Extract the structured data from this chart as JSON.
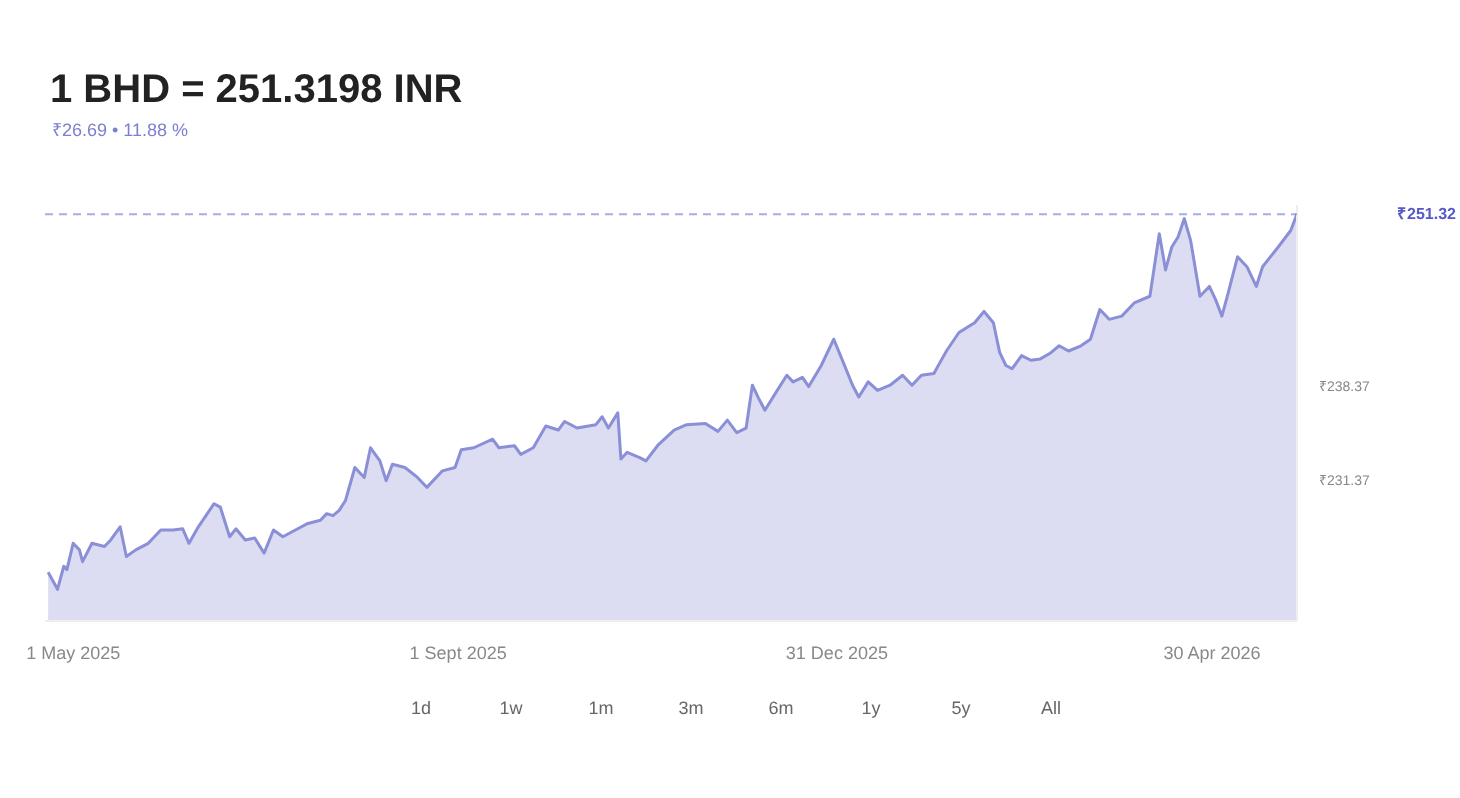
{
  "chart_data": {
    "type": "area",
    "title": "1 BHD = 251.3198 INR",
    "subtitle": "₹26.69 • 11.88 %",
    "x": [
      "2025-04-23",
      "2025-04-26",
      "2025-04-28",
      "2025-04-29",
      "2025-05-01",
      "2025-05-03",
      "2025-05-04",
      "2025-05-07",
      "2025-05-11",
      "2025-05-13",
      "2025-05-16",
      "2025-05-18",
      "2025-05-21",
      "2025-05-25",
      "2025-05-29",
      "2025-06-02",
      "2025-06-05",
      "2025-06-07",
      "2025-06-10",
      "2025-06-15",
      "2025-06-17",
      "2025-06-20",
      "2025-06-22",
      "2025-06-25",
      "2025-06-28",
      "2025-07-01",
      "2025-07-04",
      "2025-07-07",
      "2025-07-11",
      "2025-07-15",
      "2025-07-19",
      "2025-07-21",
      "2025-07-23",
      "2025-07-25",
      "2025-07-27",
      "2025-07-30",
      "2025-08-02",
      "2025-08-04",
      "2025-08-07",
      "2025-08-09",
      "2025-08-11",
      "2025-08-15",
      "2025-08-19",
      "2025-08-22",
      "2025-08-27",
      "2025-08-31",
      "2025-09-02",
      "2025-09-06",
      "2025-09-12",
      "2025-09-14",
      "2025-09-19",
      "2025-09-21",
      "2025-09-25",
      "2025-09-29",
      "2025-10-03",
      "2025-10-05",
      "2025-10-09",
      "2025-10-15",
      "2025-10-17",
      "2025-10-19",
      "2025-10-22",
      "2025-10-23",
      "2025-10-25",
      "2025-10-29",
      "2025-10-31",
      "2025-11-04",
      "2025-11-09",
      "2025-11-13",
      "2025-11-19",
      "2025-11-23",
      "2025-11-26",
      "2025-11-29",
      "2025-12-02",
      "2025-12-04",
      "2025-12-06",
      "2025-12-08",
      "2025-12-11",
      "2025-12-15",
      "2025-12-17",
      "2025-12-20",
      "2025-12-22",
      "2025-12-26",
      "2025-12-30",
      "2026-01-02",
      "2026-01-05",
      "2026-01-07",
      "2026-01-10",
      "2026-01-13",
      "2026-01-17",
      "2026-01-21",
      "2026-01-24",
      "2026-01-27",
      "2026-01-31",
      "2026-02-02",
      "2026-02-04",
      "2026-02-08",
      "2026-02-13",
      "2026-02-16",
      "2026-02-19",
      "2026-02-21",
      "2026-02-23",
      "2026-02-25",
      "2026-02-28",
      "2026-03-03",
      "2026-03-06",
      "2026-03-09",
      "2026-03-12",
      "2026-03-15",
      "2026-03-19",
      "2026-03-22",
      "2026-03-25",
      "2026-03-28",
      "2026-04-01",
      "2026-04-05",
      "2026-04-10",
      "2026-04-13",
      "2026-04-15",
      "2026-04-17",
      "2026-04-19",
      "2026-04-21",
      "2026-04-23",
      "2026-04-26",
      "2026-04-29",
      "2026-05-01",
      "2026-05-03",
      "2026-05-05",
      "2026-05-08",
      "2026-05-11",
      "2026-05-14",
      "2026-05-16",
      "2026-05-21",
      "2026-05-25",
      "2026-05-27"
    ],
    "series": [
      {
        "color": "#8a8fd6",
        "values": [
          224.63,
          223.36,
          225.08,
          224.83,
          226.79,
          226.3,
          225.42,
          226.79,
          226.55,
          227.04,
          228.02,
          225.81,
          226.3,
          226.79,
          227.78,
          227.78,
          227.87,
          226.79,
          228.02,
          229.74,
          229.49,
          227.28,
          227.87,
          227.04,
          227.19,
          226.06,
          227.78,
          227.28,
          227.78,
          228.27,
          228.51,
          229.0,
          228.85,
          229.24,
          229.98,
          232.44,
          231.7,
          233.91,
          232.93,
          231.45,
          232.68,
          232.44,
          231.7,
          230.96,
          232.19,
          232.44,
          233.76,
          233.91,
          234.55,
          233.91,
          234.06,
          233.42,
          233.91,
          235.53,
          235.23,
          235.87,
          235.38,
          235.63,
          236.22,
          235.38,
          236.51,
          233.07,
          233.57,
          233.17,
          232.93,
          234.15,
          235.23,
          235.63,
          235.72,
          235.13,
          235.97,
          235.04,
          235.38,
          238.57,
          237.59,
          236.71,
          237.83,
          239.31,
          238.82,
          239.16,
          238.47,
          240.04,
          242.0,
          240.29,
          238.57,
          237.69,
          238.82,
          238.18,
          238.57,
          239.31,
          238.57,
          239.31,
          239.45,
          240.29,
          241.12,
          242.5,
          243.23,
          244.07,
          243.23,
          241.02,
          240.04,
          239.8,
          240.78,
          240.43,
          240.53,
          240.93,
          241.51,
          241.12,
          241.51,
          242.0,
          244.21,
          243.48,
          243.72,
          244.7,
          245.2,
          249.86,
          247.16,
          248.87,
          249.61,
          250.99,
          249.37,
          245.2,
          245.93,
          244.95,
          243.72,
          245.44,
          248.14,
          247.4,
          245.93,
          247.4,
          248.87,
          250.1,
          251.32
        ]
      }
    ],
    "xlim": [
      "2025-04-22",
      "2026-05-27"
    ],
    "xticks": [
      {
        "value": "2025-05-01",
        "label": "1 May 2025"
      },
      {
        "value": "2025-09-01",
        "label": "1 Sept 2025"
      },
      {
        "value": "2025-12-31",
        "label": "31 Dec 2025"
      },
      {
        "value": "2026-04-30",
        "label": "30 Apr 2026"
      }
    ],
    "ylim": [
      221,
      252
    ],
    "yticks": [
      {
        "value": 231.37,
        "label": "₹231.37"
      },
      {
        "value": 238.37,
        "label": "₹238.37"
      }
    ],
    "ref_lines": [
      {
        "axis": "y",
        "value": 251.32,
        "label": "₹251.32",
        "color": "#5558c8",
        "line_style": "dashed"
      }
    ],
    "annotations": [
      "1d",
      "1w",
      "1m",
      "3m",
      "6m",
      "1y",
      "5y",
      "All"
    ],
    "grid": false
  }
}
